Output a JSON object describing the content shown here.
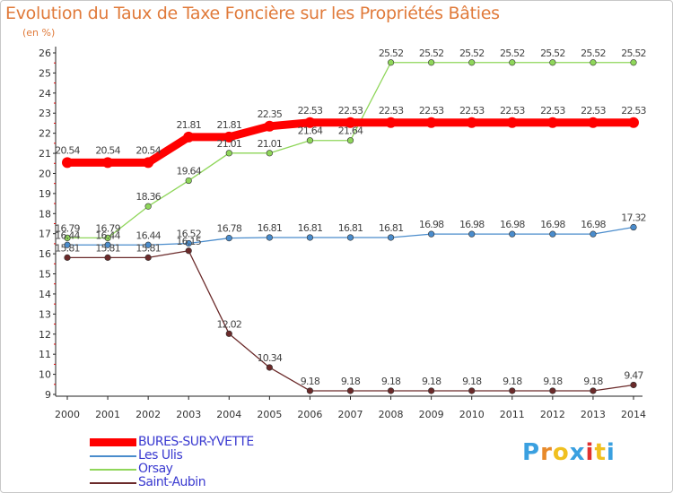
{
  "title": "Evolution du Taux de Taxe Foncière sur les Propriétés Bâties",
  "unit": "(en %)",
  "logo": "Proxiti",
  "chart_data": {
    "type": "line",
    "title": "Evolution du Taux de Taxe Foncière sur les Propriétés Bâties",
    "ylabel": "(en %)",
    "xlabel": "",
    "ylim": [
      9,
      26
    ],
    "yticks": [
      9,
      10,
      11,
      12,
      13,
      14,
      15,
      16,
      17,
      18,
      19,
      20,
      21,
      22,
      23,
      24,
      25,
      26
    ],
    "x": [
      "2000",
      "2001",
      "2002",
      "2003",
      "2004",
      "2005",
      "2006",
      "2007",
      "2008",
      "2009",
      "2010",
      "2011",
      "2012",
      "2013",
      "2014"
    ],
    "series": [
      {
        "name": "BURES-SUR-YVETTE",
        "color": "#ff0000",
        "values": [
          20.54,
          20.54,
          20.54,
          21.81,
          21.81,
          22.35,
          22.53,
          22.53,
          22.53,
          22.53,
          22.53,
          22.53,
          22.53,
          22.53,
          22.53
        ],
        "labels": [
          "20.54",
          "20.54",
          "20.54",
          "21.81",
          "21.81",
          "22.35",
          "22.53",
          "22.53",
          "22.53",
          "22.53",
          "22.53",
          "22.53",
          "22.53",
          "22.53",
          "22.53"
        ]
      },
      {
        "name": "Les Ulis",
        "color": "#4a8ccc",
        "values": [
          16.44,
          16.44,
          16.44,
          16.52,
          16.78,
          16.81,
          16.81,
          16.81,
          16.81,
          16.98,
          16.98,
          16.98,
          16.98,
          16.98,
          17.32
        ],
        "labels": [
          "16.44",
          "16.44",
          "16.44",
          "16.52",
          "16.78",
          "16.81",
          "16.81",
          "16.81",
          "16.81",
          "16.98",
          "16.98",
          "16.98",
          "16.98",
          "16.98",
          "17.32"
        ]
      },
      {
        "name": "Orsay",
        "color": "#8fd65a",
        "values": [
          16.79,
          16.79,
          18.36,
          19.64,
          21.01,
          21.01,
          21.64,
          21.64,
          25.52,
          25.52,
          25.52,
          25.52,
          25.52,
          25.52,
          25.52
        ],
        "labels": [
          "16.79",
          "16.79",
          "18.36",
          "19.64",
          "21.01",
          "21.01",
          "21.64",
          "21.64",
          "25.52",
          "25.52",
          "25.52",
          "25.52",
          "25.52",
          "25.52",
          "25.52"
        ]
      },
      {
        "name": "Saint-Aubin",
        "color": "#6b2a2a",
        "values": [
          15.81,
          15.81,
          15.81,
          16.15,
          12.02,
          10.34,
          9.18,
          9.18,
          9.18,
          9.18,
          9.18,
          9.18,
          9.18,
          9.18,
          9.47
        ],
        "labels": [
          "15.81",
          "15.81",
          "15.81",
          "16.15",
          "12.02",
          "10.34",
          "9.18",
          "9.18",
          "9.18",
          "9.18",
          "9.18",
          "9.18",
          "9.18",
          "9.18",
          "9.47"
        ]
      }
    ],
    "grid": false,
    "legend": "bottom-left"
  }
}
